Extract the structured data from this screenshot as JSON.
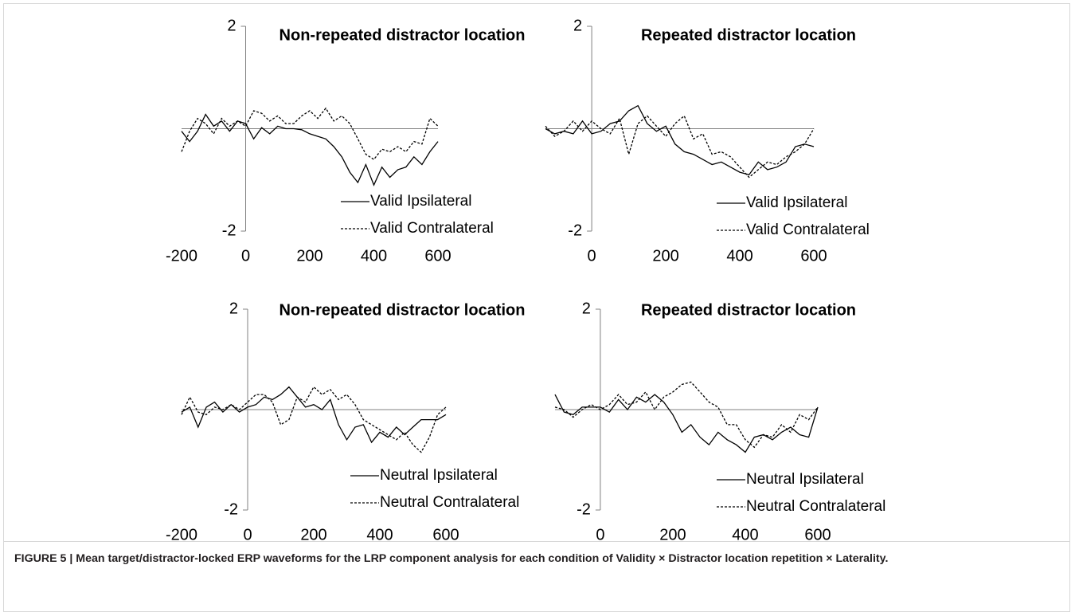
{
  "chart_data": [
    {
      "type": "line",
      "title": "Non-repeated distractor location",
      "x": [
        -200,
        -175,
        -150,
        -125,
        -100,
        -75,
        -50,
        -25,
        0,
        25,
        50,
        75,
        100,
        125,
        150,
        175,
        200,
        225,
        250,
        275,
        300,
        325,
        350,
        375,
        400,
        425,
        450,
        475,
        500,
        525,
        550,
        575,
        600
      ],
      "xlim": [
        -200,
        600
      ],
      "xticks": [
        -200,
        0,
        200,
        400,
        600
      ],
      "ylim": [
        -2,
        2
      ],
      "yticks": [
        2,
        -2
      ],
      "series": [
        {
          "name": "Valid Ipsilateral",
          "color": "#000000",
          "line_style": "solid",
          "values": [
            -0.05,
            -0.25,
            -0.05,
            0.28,
            0.05,
            0.15,
            -0.05,
            0.15,
            0.1,
            -0.2,
            0.02,
            -0.1,
            0.05,
            0,
            0,
            -0.02,
            -0.1,
            -0.15,
            -0.2,
            -0.35,
            -0.55,
            -0.85,
            -1.05,
            -0.7,
            -1.1,
            -0.75,
            -0.95,
            -0.8,
            -0.75,
            -0.55,
            -0.7,
            -0.45,
            -0.25
          ]
        },
        {
          "name": "Valid Contralateral",
          "color": "#000000",
          "line_style": "dashed",
          "values": [
            -0.45,
            -0.05,
            0.2,
            0.1,
            -0.1,
            0.2,
            0.05,
            0.15,
            0.05,
            0.35,
            0.3,
            0.15,
            0.25,
            0.1,
            0.1,
            0.25,
            0.35,
            0.2,
            0.4,
            0.15,
            0.25,
            0.1,
            -0.2,
            -0.5,
            -0.6,
            -0.4,
            -0.45,
            -0.35,
            -0.45,
            -0.25,
            -0.3,
            0.2,
            0.05
          ]
        }
      ]
    },
    {
      "type": "line",
      "title": "Repeated distractor location",
      "x": [
        -125,
        -100,
        -75,
        -50,
        -25,
        0,
        25,
        50,
        75,
        100,
        125,
        150,
        175,
        200,
        225,
        250,
        275,
        300,
        325,
        350,
        375,
        400,
        425,
        450,
        475,
        500,
        525,
        550,
        575,
        600
      ],
      "xlim": [
        -125,
        600
      ],
      "xticks": [
        0,
        200,
        400,
        600
      ],
      "ylim": [
        -2,
        2
      ],
      "yticks": [
        2,
        -2
      ],
      "series": [
        {
          "name": "Valid Ipsilateral",
          "color": "#000000",
          "line_style": "solid",
          "values": [
            0,
            -0.1,
            -0.05,
            -0.1,
            0.15,
            -0.1,
            -0.05,
            0.1,
            0.15,
            0.35,
            0.45,
            0.1,
            -0.05,
            0.05,
            -0.3,
            -0.45,
            -0.5,
            -0.6,
            -0.7,
            -0.65,
            -0.75,
            -0.85,
            -0.9,
            -0.65,
            -0.8,
            -0.75,
            -0.65,
            -0.35,
            -0.3,
            -0.35
          ]
        },
        {
          "name": "Valid Contralateral",
          "color": "#000000",
          "line_style": "dashed",
          "values": [
            0.05,
            -0.15,
            -0.05,
            0.15,
            -0.05,
            0.15,
            0,
            -0.1,
            0.2,
            -0.5,
            0.1,
            0.25,
            0.05,
            -0.15,
            0.1,
            0.25,
            -0.2,
            -0.1,
            -0.5,
            -0.45,
            -0.55,
            -0.75,
            -0.95,
            -0.8,
            -0.65,
            -0.7,
            -0.55,
            -0.45,
            -0.3,
            0
          ]
        }
      ]
    },
    {
      "type": "line",
      "title": "Non-repeated distractor location",
      "x": [
        -200,
        -175,
        -150,
        -125,
        -100,
        -75,
        -50,
        -25,
        0,
        25,
        50,
        75,
        100,
        125,
        150,
        175,
        200,
        225,
        250,
        275,
        300,
        325,
        350,
        375,
        400,
        425,
        450,
        475,
        500,
        525,
        550,
        575,
        600
      ],
      "xlim": [
        -200,
        600
      ],
      "xticks": [
        -200,
        0,
        200,
        400,
        600
      ],
      "ylim": [
        -2,
        2
      ],
      "yticks": [
        2,
        -2
      ],
      "series": [
        {
          "name": "Neutral Ipsilateral",
          "color": "#000000",
          "line_style": "solid",
          "values": [
            -0.05,
            0.05,
            -0.35,
            0.05,
            0.15,
            -0.05,
            0.1,
            -0.05,
            0.05,
            0.1,
            0.25,
            0.2,
            0.3,
            0.45,
            0.25,
            0.05,
            0.1,
            0,
            0.2,
            -0.3,
            -0.6,
            -0.35,
            -0.3,
            -0.65,
            -0.45,
            -0.55,
            -0.35,
            -0.5,
            -0.35,
            -0.2,
            -0.2,
            -0.2,
            -0.1
          ]
        },
        {
          "name": "Neutral Contralateral",
          "color": "#000000",
          "line_style": "dashed",
          "values": [
            -0.1,
            0.25,
            -0.05,
            -0.1,
            0.05,
            0,
            0.1,
            0,
            0.15,
            0.3,
            0.3,
            0.15,
            -0.3,
            -0.2,
            0.25,
            0.15,
            0.45,
            0.3,
            0.4,
            0.2,
            0.3,
            0.1,
            -0.2,
            -0.3,
            -0.4,
            -0.5,
            -0.6,
            -0.45,
            -0.7,
            -0.85,
            -0.55,
            -0.1,
            0.05
          ]
        }
      ]
    },
    {
      "type": "line",
      "title": "Repeated distractor location",
      "x": [
        -125,
        -100,
        -75,
        -50,
        -25,
        0,
        25,
        50,
        75,
        100,
        125,
        150,
        175,
        200,
        225,
        250,
        275,
        300,
        325,
        350,
        375,
        400,
        425,
        450,
        475,
        500,
        525,
        550,
        575,
        600
      ],
      "xlim": [
        -125,
        600
      ],
      "xticks": [
        0,
        200,
        400,
        600
      ],
      "ylim": [
        -2,
        2
      ],
      "yticks": [
        2,
        -2
      ],
      "series": [
        {
          "name": "Neutral Ipsilateral",
          "color": "#000000",
          "line_style": "solid",
          "values": [
            0.3,
            -0.05,
            -0.1,
            0.05,
            0.05,
            0.05,
            -0.05,
            0.2,
            0,
            0.25,
            0.15,
            0.3,
            0.15,
            -0.1,
            -0.45,
            -0.3,
            -0.55,
            -0.7,
            -0.45,
            -0.6,
            -0.7,
            -0.85,
            -0.55,
            -0.5,
            -0.6,
            -0.45,
            -0.35,
            -0.5,
            -0.55,
            0.05
          ]
        },
        {
          "name": "Neutral Contralateral",
          "color": "#000000",
          "line_style": "dashed",
          "values": [
            0.05,
            0,
            -0.15,
            0,
            0.1,
            0,
            0.1,
            0.3,
            0.1,
            0.15,
            0.35,
            0,
            0.25,
            0.35,
            0.5,
            0.55,
            0.35,
            0.15,
            0.05,
            -0.3,
            -0.3,
            -0.6,
            -0.75,
            -0.5,
            -0.55,
            -0.3,
            -0.45,
            -0.1,
            -0.2,
            0.05
          ]
        }
      ]
    }
  ],
  "caption": "FIGURE 5 | Mean target/distractor-locked ERP waveforms for the LRP component analysis for each condition of Validity × Distractor location repetition × Laterality."
}
